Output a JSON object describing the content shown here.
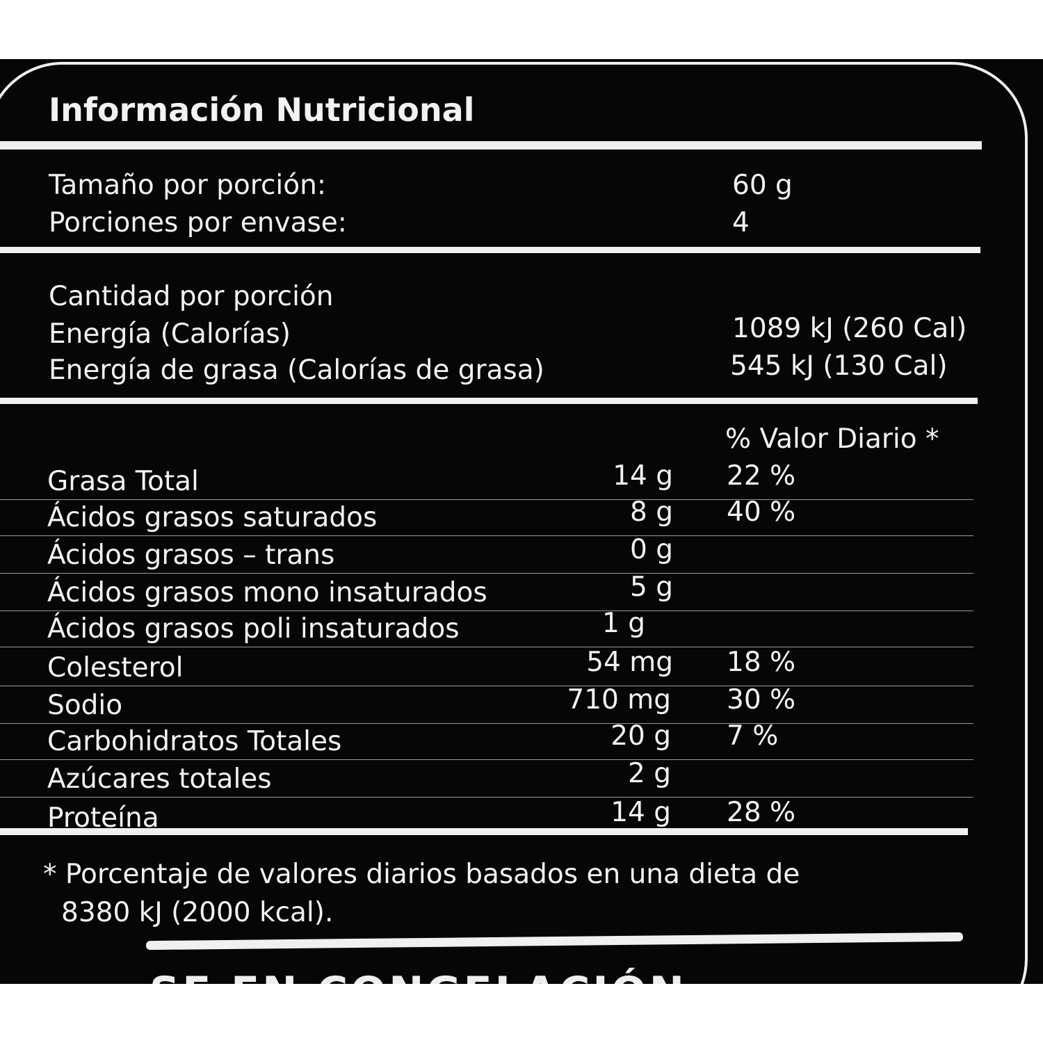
{
  "title": "Información Nutricional",
  "serving": {
    "size_label": "Tamaño por porción:",
    "size_value": "60 g",
    "per_package_label": "Porciones por envase:",
    "per_package_value": "4"
  },
  "energy": {
    "amount_label": "Cantidad por porción",
    "energy_label": "Energía (Calorías)",
    "energy_value": "1089 kJ (260 Cal)",
    "fat_energy_label": "Energía de grasa  (Calorías de  grasa)",
    "fat_energy_value": "545 kJ (130 Cal)"
  },
  "dv_header": "% Valor Diario *",
  "nutrients": [
    {
      "name": "Grasa Total",
      "amount": "14 g",
      "dv": "22 %"
    },
    {
      "name": "Ácidos grasos saturados",
      "amount": "8 g",
      "dv": "40 %"
    },
    {
      "name": "Ácidos grasos – trans",
      "amount": "0 g",
      "dv": ""
    },
    {
      "name": "Ácidos grasos mono insaturados",
      "amount": "5 g",
      "dv": ""
    },
    {
      "name": "Ácidos grasos poli insaturados",
      "amount": "1 g",
      "dv": ""
    },
    {
      "name": "Colesterol",
      "amount": "54 mg",
      "dv": "18 %"
    },
    {
      "name": "Sodio",
      "amount": "710 mg",
      "dv": "30 %"
    },
    {
      "name": "Carbohidratos Totales",
      "amount": "20 g",
      "dv": "7 %"
    },
    {
      "name": "Azúcares totales",
      "amount": "2 g",
      "dv": ""
    },
    {
      "name": "Proteína",
      "amount": "14 g",
      "dv": "28 %"
    }
  ],
  "footnote_line1": "* Porcentaje de valores diarios basados en una dieta de",
  "footnote_line2": "8380 kJ (2000 kcal).",
  "cut_text": "SE EN CONGELACIÓN"
}
